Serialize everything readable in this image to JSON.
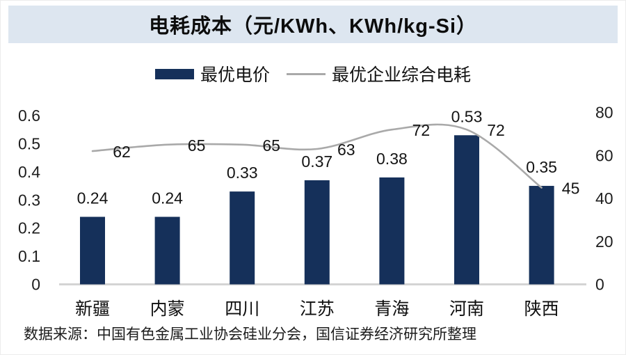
{
  "title": "电耗成本（元/KWh、KWh/kg-Si）",
  "legend": [
    {
      "label": "最优电价",
      "type": "bar",
      "color": "#15305a"
    },
    {
      "label": "最优企业综合电耗",
      "type": "line",
      "color": "#a9a9a9"
    }
  ],
  "footer": "数据来源：中国有色金属工业协会硅业分会，国信证券经济研究所整理",
  "colors": {
    "bar": "#15305a",
    "line": "#a9a9a9",
    "banner": "#dde6f0",
    "baseline": "#d4d4d4",
    "text": "#141414"
  },
  "chart_data": {
    "type": "bar",
    "title": "电耗成本（元/KWh、KWh/kg-Si）",
    "categories": [
      "新疆",
      "内蒙",
      "四川",
      "江苏",
      "青海",
      "河南",
      "陕西"
    ],
    "series": [
      {
        "name": "最优电价",
        "type": "bar",
        "axis": "left",
        "color": "#15305a",
        "values": [
          0.24,
          0.24,
          0.33,
          0.37,
          0.38,
          0.53,
          0.35
        ],
        "labels": [
          "0.24",
          "0.24",
          "0.33",
          "0.37",
          "0.38",
          "0.53",
          "0.35"
        ]
      },
      {
        "name": "最优企业综合电耗",
        "type": "line",
        "axis": "right",
        "color": "#a9a9a9",
        "values": [
          62,
          65,
          65,
          63,
          72,
          72,
          45
        ],
        "labels": [
          "62",
          "65",
          "65",
          "63",
          "72",
          "72",
          "45"
        ]
      }
    ],
    "left_axis": {
      "min": 0,
      "max": 0.6,
      "ticks": [
        "0",
        "0.1",
        "0.2",
        "0.3",
        "0.4",
        "0.5",
        "0.6"
      ]
    },
    "right_axis": {
      "min": 0,
      "max": 80,
      "ticks": [
        "0",
        "20",
        "40",
        "60",
        "80"
      ]
    },
    "grid": false,
    "legend_position": "top"
  }
}
